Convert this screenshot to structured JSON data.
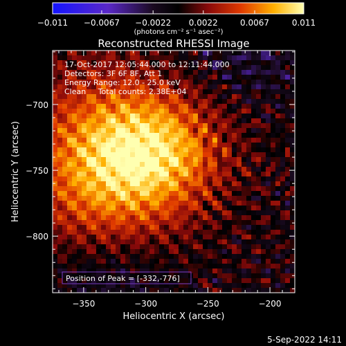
{
  "chart_data": {
    "type": "heatmap",
    "title": "Reconstructed RHESSI Image",
    "xlabel": "Heliocentric X (arcsec)",
    "ylabel": "Heliocentric Y (arcsec)",
    "xlim": [
      -375,
      -180
    ],
    "ylim": [
      -843,
      -659
    ],
    "xticks": [
      -350,
      -300,
      -250,
      -200
    ],
    "xtick_labels": [
      "−350",
      "−300",
      "−250",
      "−200"
    ],
    "yticks": [
      -700,
      -750,
      -800
    ],
    "ytick_labels": [
      "−700",
      "−750",
      "−800"
    ],
    "colorbar": {
      "min": -0.011,
      "max": 0.011,
      "ticks": [
        -0.011,
        -0.0067,
        -0.0022,
        0.0022,
        0.0067,
        0.011
      ],
      "tick_labels": [
        "−0.011",
        "−0.0067",
        "−0.0022",
        "0.0022",
        "0.0067",
        "0.011"
      ],
      "unit_label": "(photons cm⁻² s⁻¹ asec⁻²)"
    },
    "annotations": [
      "17-Oct-2017 12:05:44.000 to 12:11:44.000",
      "Detectors: 3F 6F 8F, Att 1",
      "Energy Range: 12.0 - 25.0 keV",
      "Clean     Total counts: 2.38E+04"
    ],
    "peak_label": "Position of Peak = [-332,-776]",
    "peak": [
      -332,
      -776
    ],
    "colors": {
      "background": "#000000",
      "axis": "#ffffff",
      "peak_box": "#7a3cc8"
    }
  },
  "footer": {
    "timestamp": "5-Sep-2022 14:11"
  }
}
